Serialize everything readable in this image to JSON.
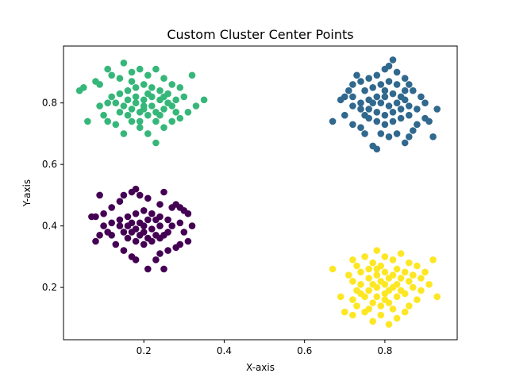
{
  "chart_data": {
    "type": "scatter",
    "title": "Custom Cluster Center Points",
    "xlabel": "X-axis",
    "ylabel": "Y-axis",
    "xlim": [
      0.0,
      0.98
    ],
    "ylim": [
      0.03,
      0.985
    ],
    "xticks": [
      0.2,
      0.4,
      0.6,
      0.8
    ],
    "yticks": [
      0.2,
      0.4,
      0.6,
      0.8
    ],
    "xtick_labels": [
      "0.2",
      "0.4",
      "0.6",
      "0.8"
    ],
    "ytick_labels": [
      "0.2",
      "0.4",
      "0.6",
      "0.8"
    ],
    "grid": false,
    "legend": "none",
    "series": [
      {
        "color": "#440154",
        "center": [
          0.2,
          0.4
        ],
        "points": [
          [
            0.09,
            0.5
          ],
          [
            0.1,
            0.44
          ],
          [
            0.08,
            0.43
          ],
          [
            0.07,
            0.43
          ],
          [
            0.12,
            0.46
          ],
          [
            0.14,
            0.48
          ],
          [
            0.15,
            0.5
          ],
          [
            0.17,
            0.51
          ],
          [
            0.18,
            0.52
          ],
          [
            0.19,
            0.5
          ],
          [
            0.21,
            0.49
          ],
          [
            0.24,
            0.47
          ],
          [
            0.25,
            0.51
          ],
          [
            0.27,
            0.46
          ],
          [
            0.28,
            0.47
          ],
          [
            0.29,
            0.46
          ],
          [
            0.3,
            0.45
          ],
          [
            0.31,
            0.44
          ],
          [
            0.29,
            0.41
          ],
          [
            0.32,
            0.4
          ],
          [
            0.3,
            0.38
          ],
          [
            0.31,
            0.35
          ],
          [
            0.29,
            0.34
          ],
          [
            0.28,
            0.33
          ],
          [
            0.26,
            0.32
          ],
          [
            0.24,
            0.31
          ],
          [
            0.23,
            0.29
          ],
          [
            0.21,
            0.26
          ],
          [
            0.25,
            0.26
          ],
          [
            0.18,
            0.29
          ],
          [
            0.17,
            0.3
          ],
          [
            0.15,
            0.32
          ],
          [
            0.13,
            0.34
          ],
          [
            0.12,
            0.37
          ],
          [
            0.11,
            0.38
          ],
          [
            0.1,
            0.4
          ],
          [
            0.08,
            0.35
          ],
          [
            0.09,
            0.37
          ],
          [
            0.12,
            0.41
          ],
          [
            0.14,
            0.42
          ],
          [
            0.16,
            0.43
          ],
          [
            0.18,
            0.44
          ],
          [
            0.2,
            0.45
          ],
          [
            0.22,
            0.44
          ],
          [
            0.24,
            0.43
          ],
          [
            0.26,
            0.42
          ],
          [
            0.27,
            0.4
          ],
          [
            0.26,
            0.38
          ],
          [
            0.24,
            0.36
          ],
          [
            0.22,
            0.35
          ],
          [
            0.2,
            0.34
          ],
          [
            0.18,
            0.35
          ],
          [
            0.16,
            0.36
          ],
          [
            0.15,
            0.38
          ],
          [
            0.14,
            0.4
          ],
          [
            0.16,
            0.4
          ],
          [
            0.18,
            0.39
          ],
          [
            0.2,
            0.38
          ],
          [
            0.22,
            0.39
          ],
          [
            0.24,
            0.4
          ],
          [
            0.23,
            0.42
          ],
          [
            0.21,
            0.42
          ],
          [
            0.19,
            0.41
          ],
          [
            0.17,
            0.41
          ],
          [
            0.19,
            0.37
          ],
          [
            0.21,
            0.36
          ],
          [
            0.23,
            0.37
          ],
          [
            0.25,
            0.37
          ],
          [
            0.17,
            0.38
          ],
          [
            0.2,
            0.4
          ]
        ]
      },
      {
        "color": "#31688e",
        "center": [
          0.8,
          0.8
        ],
        "points": [
          [
            0.69,
            0.81
          ],
          [
            0.7,
            0.82
          ],
          [
            0.72,
            0.82
          ],
          [
            0.72,
            0.79
          ],
          [
            0.74,
            0.78
          ],
          [
            0.67,
            0.74
          ],
          [
            0.7,
            0.76
          ],
          [
            0.72,
            0.73
          ],
          [
            0.74,
            0.72
          ],
          [
            0.75,
            0.7
          ],
          [
            0.77,
            0.66
          ],
          [
            0.78,
            0.65
          ],
          [
            0.79,
            0.7
          ],
          [
            0.81,
            0.69
          ],
          [
            0.83,
            0.7
          ],
          [
            0.85,
            0.67
          ],
          [
            0.86,
            0.69
          ],
          [
            0.87,
            0.71
          ],
          [
            0.88,
            0.73
          ],
          [
            0.9,
            0.75
          ],
          [
            0.91,
            0.74
          ],
          [
            0.92,
            0.69
          ],
          [
            0.93,
            0.78
          ],
          [
            0.9,
            0.8
          ],
          [
            0.89,
            0.82
          ],
          [
            0.87,
            0.84
          ],
          [
            0.86,
            0.86
          ],
          [
            0.85,
            0.88
          ],
          [
            0.83,
            0.9
          ],
          [
            0.81,
            0.92
          ],
          [
            0.82,
            0.94
          ],
          [
            0.8,
            0.91
          ],
          [
            0.78,
            0.89
          ],
          [
            0.76,
            0.88
          ],
          [
            0.74,
            0.87
          ],
          [
            0.73,
            0.89
          ],
          [
            0.72,
            0.86
          ],
          [
            0.71,
            0.84
          ],
          [
            0.75,
            0.84
          ],
          [
            0.77,
            0.85
          ],
          [
            0.79,
            0.86
          ],
          [
            0.81,
            0.87
          ],
          [
            0.83,
            0.86
          ],
          [
            0.85,
            0.84
          ],
          [
            0.84,
            0.82
          ],
          [
            0.82,
            0.83
          ],
          [
            0.8,
            0.82
          ],
          [
            0.78,
            0.82
          ],
          [
            0.76,
            0.81
          ],
          [
            0.74,
            0.8
          ],
          [
            0.76,
            0.78
          ],
          [
            0.78,
            0.77
          ],
          [
            0.8,
            0.76
          ],
          [
            0.82,
            0.77
          ],
          [
            0.84,
            0.78
          ],
          [
            0.86,
            0.79
          ],
          [
            0.88,
            0.78
          ],
          [
            0.86,
            0.76
          ],
          [
            0.84,
            0.75
          ],
          [
            0.82,
            0.74
          ],
          [
            0.8,
            0.73
          ],
          [
            0.78,
            0.74
          ],
          [
            0.76,
            0.75
          ],
          [
            0.79,
            0.8
          ],
          [
            0.81,
            0.79
          ],
          [
            0.83,
            0.8
          ],
          [
            0.77,
            0.8
          ],
          [
            0.8,
            0.84
          ],
          [
            0.75,
            0.76
          ],
          [
            0.85,
            0.81
          ]
        ]
      },
      {
        "color": "#35b779",
        "center": [
          0.2,
          0.8
        ],
        "points": [
          [
            0.04,
            0.84
          ],
          [
            0.05,
            0.85
          ],
          [
            0.06,
            0.74
          ],
          [
            0.08,
            0.87
          ],
          [
            0.09,
            0.86
          ],
          [
            0.11,
            0.91
          ],
          [
            0.12,
            0.89
          ],
          [
            0.14,
            0.88
          ],
          [
            0.15,
            0.93
          ],
          [
            0.17,
            0.9
          ],
          [
            0.19,
            0.91
          ],
          [
            0.21,
            0.89
          ],
          [
            0.23,
            0.91
          ],
          [
            0.25,
            0.88
          ],
          [
            0.27,
            0.86
          ],
          [
            0.29,
            0.85
          ],
          [
            0.32,
            0.89
          ],
          [
            0.3,
            0.82
          ],
          [
            0.33,
            0.79
          ],
          [
            0.35,
            0.81
          ],
          [
            0.31,
            0.77
          ],
          [
            0.29,
            0.75
          ],
          [
            0.27,
            0.74
          ],
          [
            0.25,
            0.72
          ],
          [
            0.23,
            0.67
          ],
          [
            0.21,
            0.7
          ],
          [
            0.19,
            0.72
          ],
          [
            0.17,
            0.74
          ],
          [
            0.15,
            0.7
          ],
          [
            0.13,
            0.73
          ],
          [
            0.11,
            0.74
          ],
          [
            0.1,
            0.76
          ],
          [
            0.09,
            0.79
          ],
          [
            0.11,
            0.8
          ],
          [
            0.12,
            0.82
          ],
          [
            0.14,
            0.83
          ],
          [
            0.16,
            0.84
          ],
          [
            0.18,
            0.85
          ],
          [
            0.2,
            0.86
          ],
          [
            0.22,
            0.85
          ],
          [
            0.24,
            0.84
          ],
          [
            0.26,
            0.83
          ],
          [
            0.28,
            0.81
          ],
          [
            0.27,
            0.79
          ],
          [
            0.25,
            0.78
          ],
          [
            0.23,
            0.77
          ],
          [
            0.21,
            0.76
          ],
          [
            0.19,
            0.77
          ],
          [
            0.17,
            0.78
          ],
          [
            0.15,
            0.79
          ],
          [
            0.14,
            0.77
          ],
          [
            0.16,
            0.76
          ],
          [
            0.18,
            0.8
          ],
          [
            0.2,
            0.81
          ],
          [
            0.22,
            0.82
          ],
          [
            0.24,
            0.81
          ],
          [
            0.26,
            0.8
          ],
          [
            0.22,
            0.79
          ],
          [
            0.2,
            0.79
          ],
          [
            0.18,
            0.82
          ],
          [
            0.16,
            0.81
          ],
          [
            0.24,
            0.76
          ],
          [
            0.21,
            0.83
          ],
          [
            0.19,
            0.74
          ],
          [
            0.13,
            0.8
          ],
          [
            0.28,
            0.77
          ],
          [
            0.23,
            0.74
          ],
          [
            0.17,
            0.87
          ],
          [
            0.2,
            0.78
          ],
          [
            0.25,
            0.82
          ]
        ]
      },
      {
        "color": "#fde725",
        "center": [
          0.8,
          0.2
        ],
        "points": [
          [
            0.67,
            0.26
          ],
          [
            0.69,
            0.17
          ],
          [
            0.7,
            0.12
          ],
          [
            0.72,
            0.11
          ],
          [
            0.71,
            0.24
          ],
          [
            0.72,
            0.29
          ],
          [
            0.73,
            0.27
          ],
          [
            0.74,
            0.25
          ],
          [
            0.75,
            0.3
          ],
          [
            0.77,
            0.28
          ],
          [
            0.78,
            0.32
          ],
          [
            0.8,
            0.3
          ],
          [
            0.82,
            0.29
          ],
          [
            0.84,
            0.31
          ],
          [
            0.86,
            0.28
          ],
          [
            0.88,
            0.27
          ],
          [
            0.9,
            0.25
          ],
          [
            0.92,
            0.29
          ],
          [
            0.89,
            0.23
          ],
          [
            0.91,
            0.21
          ],
          [
            0.93,
            0.17
          ],
          [
            0.89,
            0.19
          ],
          [
            0.88,
            0.16
          ],
          [
            0.86,
            0.14
          ],
          [
            0.85,
            0.12
          ],
          [
            0.83,
            0.1
          ],
          [
            0.81,
            0.08
          ],
          [
            0.79,
            0.11
          ],
          [
            0.77,
            0.09
          ],
          [
            0.75,
            0.12
          ],
          [
            0.73,
            0.14
          ],
          [
            0.72,
            0.16
          ],
          [
            0.73,
            0.19
          ],
          [
            0.72,
            0.22
          ],
          [
            0.74,
            0.21
          ],
          [
            0.76,
            0.23
          ],
          [
            0.78,
            0.24
          ],
          [
            0.8,
            0.25
          ],
          [
            0.82,
            0.24
          ],
          [
            0.84,
            0.23
          ],
          [
            0.86,
            0.22
          ],
          [
            0.87,
            0.2
          ],
          [
            0.85,
            0.18
          ],
          [
            0.83,
            0.17
          ],
          [
            0.81,
            0.15
          ],
          [
            0.79,
            0.14
          ],
          [
            0.77,
            0.15
          ],
          [
            0.75,
            0.17
          ],
          [
            0.76,
            0.19
          ],
          [
            0.78,
            0.2
          ],
          [
            0.8,
            0.21
          ],
          [
            0.82,
            0.2
          ],
          [
            0.84,
            0.19
          ],
          [
            0.8,
            0.18
          ],
          [
            0.78,
            0.17
          ],
          [
            0.82,
            0.13
          ],
          [
            0.76,
            0.26
          ],
          [
            0.79,
            0.27
          ],
          [
            0.83,
            0.26
          ],
          [
            0.85,
            0.25
          ],
          [
            0.74,
            0.18
          ],
          [
            0.81,
            0.19
          ],
          [
            0.79,
            0.22
          ],
          [
            0.77,
            0.21
          ],
          [
            0.83,
            0.21
          ],
          [
            0.8,
            0.16
          ],
          [
            0.87,
            0.24
          ],
          [
            0.76,
            0.13
          ],
          [
            0.81,
            0.23
          ],
          [
            0.78,
            0.26
          ]
        ]
      }
    ]
  }
}
